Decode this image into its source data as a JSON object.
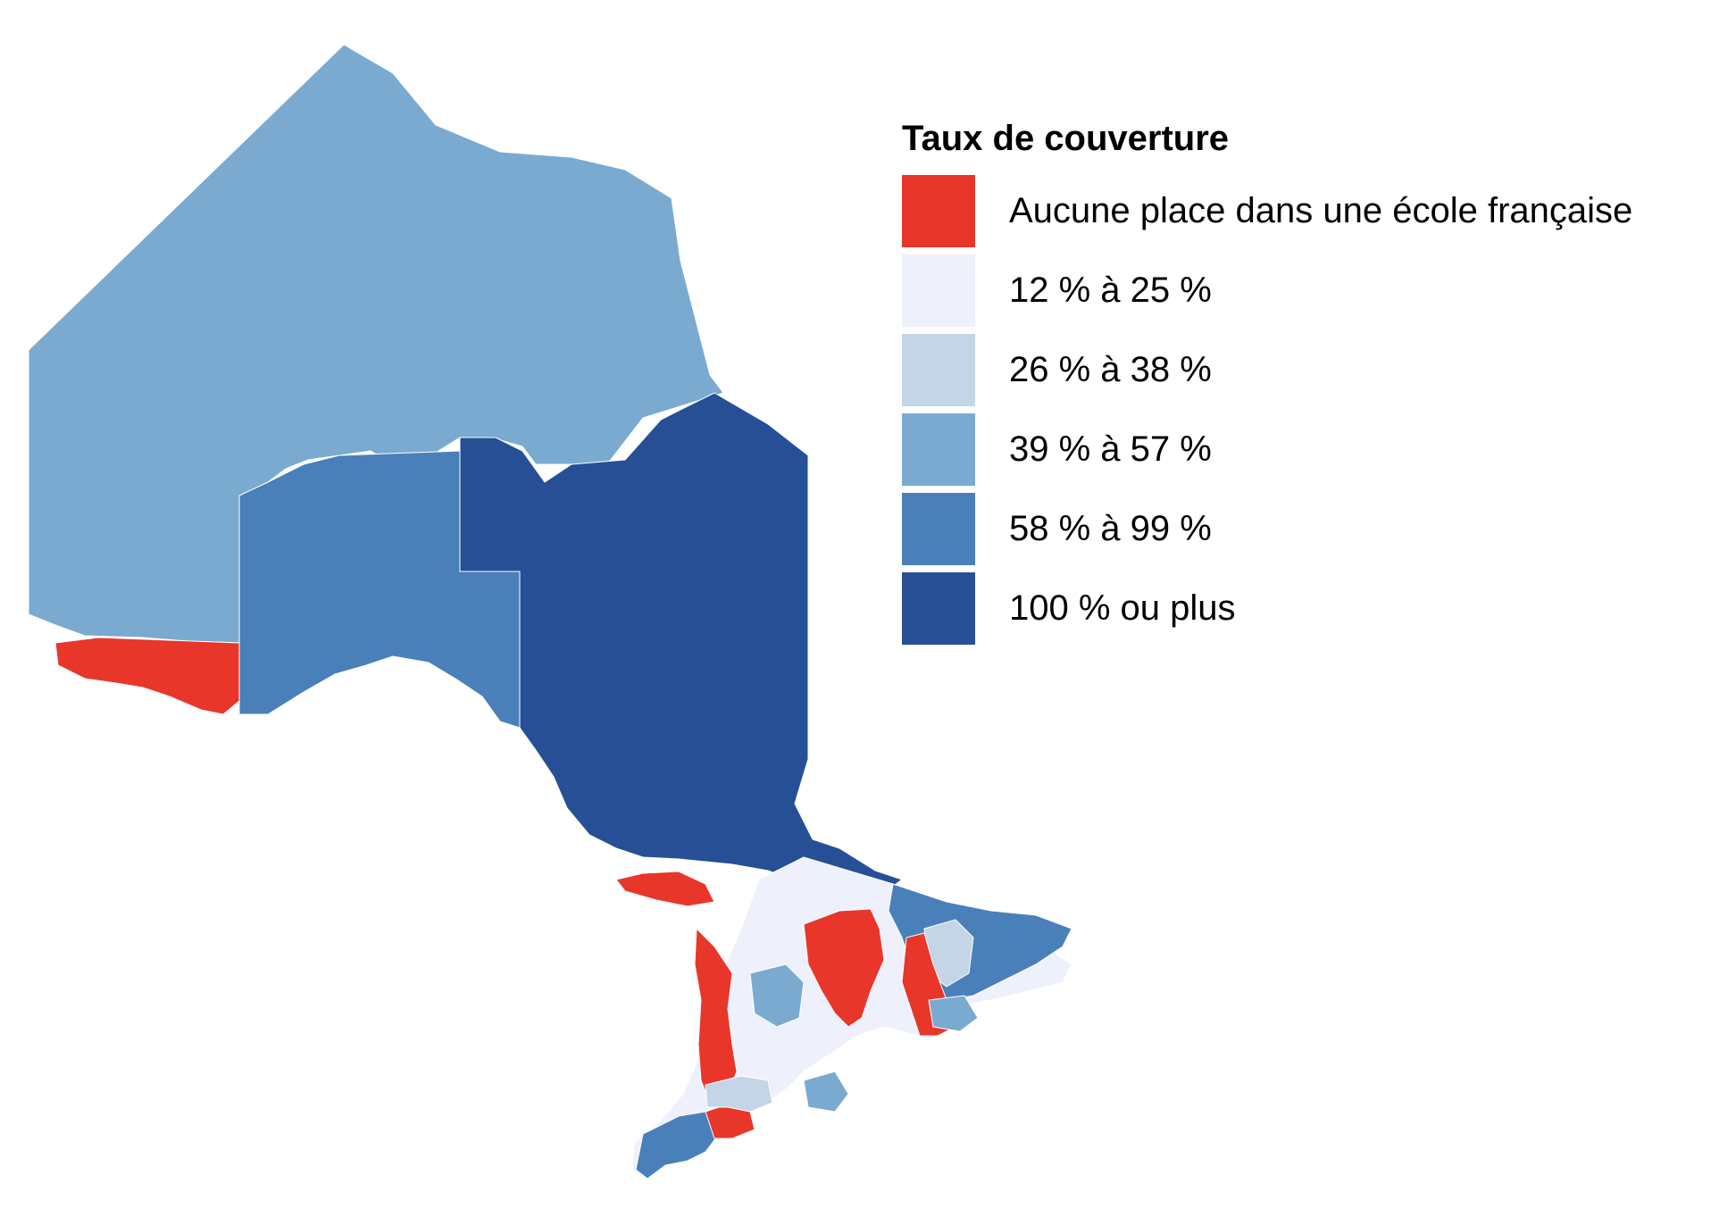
{
  "legend": {
    "title": "Taux de couverture",
    "items": [
      {
        "label": "Aucune place dans une école française",
        "color": "#e8362a"
      },
      {
        "label": "12 % à 25 %",
        "color": "#eef1fb"
      },
      {
        "label": "26 % à 38 %",
        "color": "#c3d5e6"
      },
      {
        "label": "39 % à 57 %",
        "color": "#7aaad0"
      },
      {
        "label": "58 % à 99 %",
        "color": "#4a80b9"
      },
      {
        "label": "100 % ou plus",
        "color": "#264f96"
      }
    ]
  }
}
